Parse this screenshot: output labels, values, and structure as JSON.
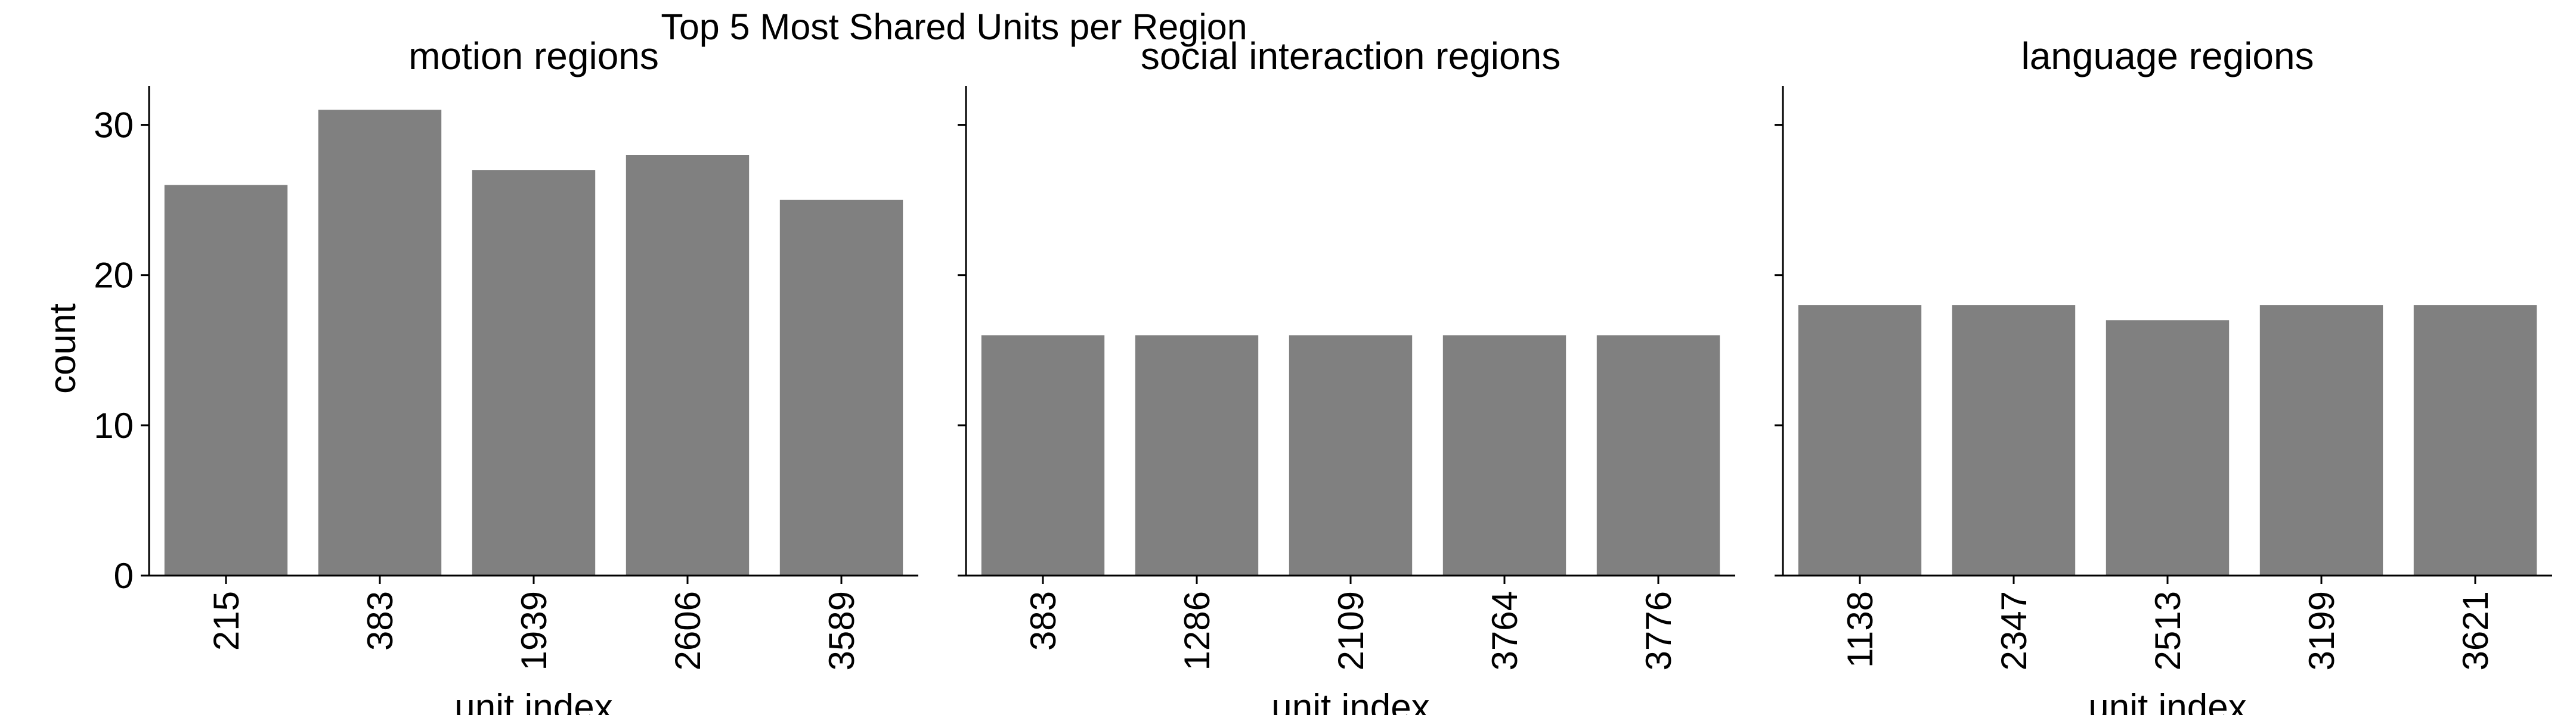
{
  "figure_title": "Top 5 Most Shared Units per Region",
  "chart_data": [
    {
      "type": "bar",
      "title": "motion regions",
      "categories": [
        "215",
        "383",
        "1939",
        "2606",
        "3589"
      ],
      "values": [
        26,
        31,
        27,
        28,
        25
      ],
      "xlabel": "unit index",
      "ylabel": "count",
      "ylim": [
        0,
        32.6
      ],
      "yticks": [
        0,
        10,
        20,
        30
      ],
      "grid": false,
      "legend": "none",
      "bar_color": "#808080"
    },
    {
      "type": "bar",
      "title": "social interaction regions",
      "categories": [
        "383",
        "1286",
        "2109",
        "3764",
        "3776"
      ],
      "values": [
        16,
        16,
        16,
        16,
        16
      ],
      "xlabel": "unit index",
      "ylabel": "",
      "ylim": [
        0,
        32.6
      ],
      "yticks": [
        0,
        10,
        20,
        30
      ],
      "grid": false,
      "legend": "none",
      "bar_color": "#808080"
    },
    {
      "type": "bar",
      "title": "language regions",
      "categories": [
        "1138",
        "2347",
        "2513",
        "3199",
        "3621"
      ],
      "values": [
        18,
        18,
        17,
        18,
        18
      ],
      "xlabel": "unit index",
      "ylabel": "",
      "ylim": [
        0,
        32.6
      ],
      "yticks": [
        0,
        10,
        20,
        30
      ],
      "grid": false,
      "legend": "none",
      "bar_color": "#808080"
    }
  ]
}
